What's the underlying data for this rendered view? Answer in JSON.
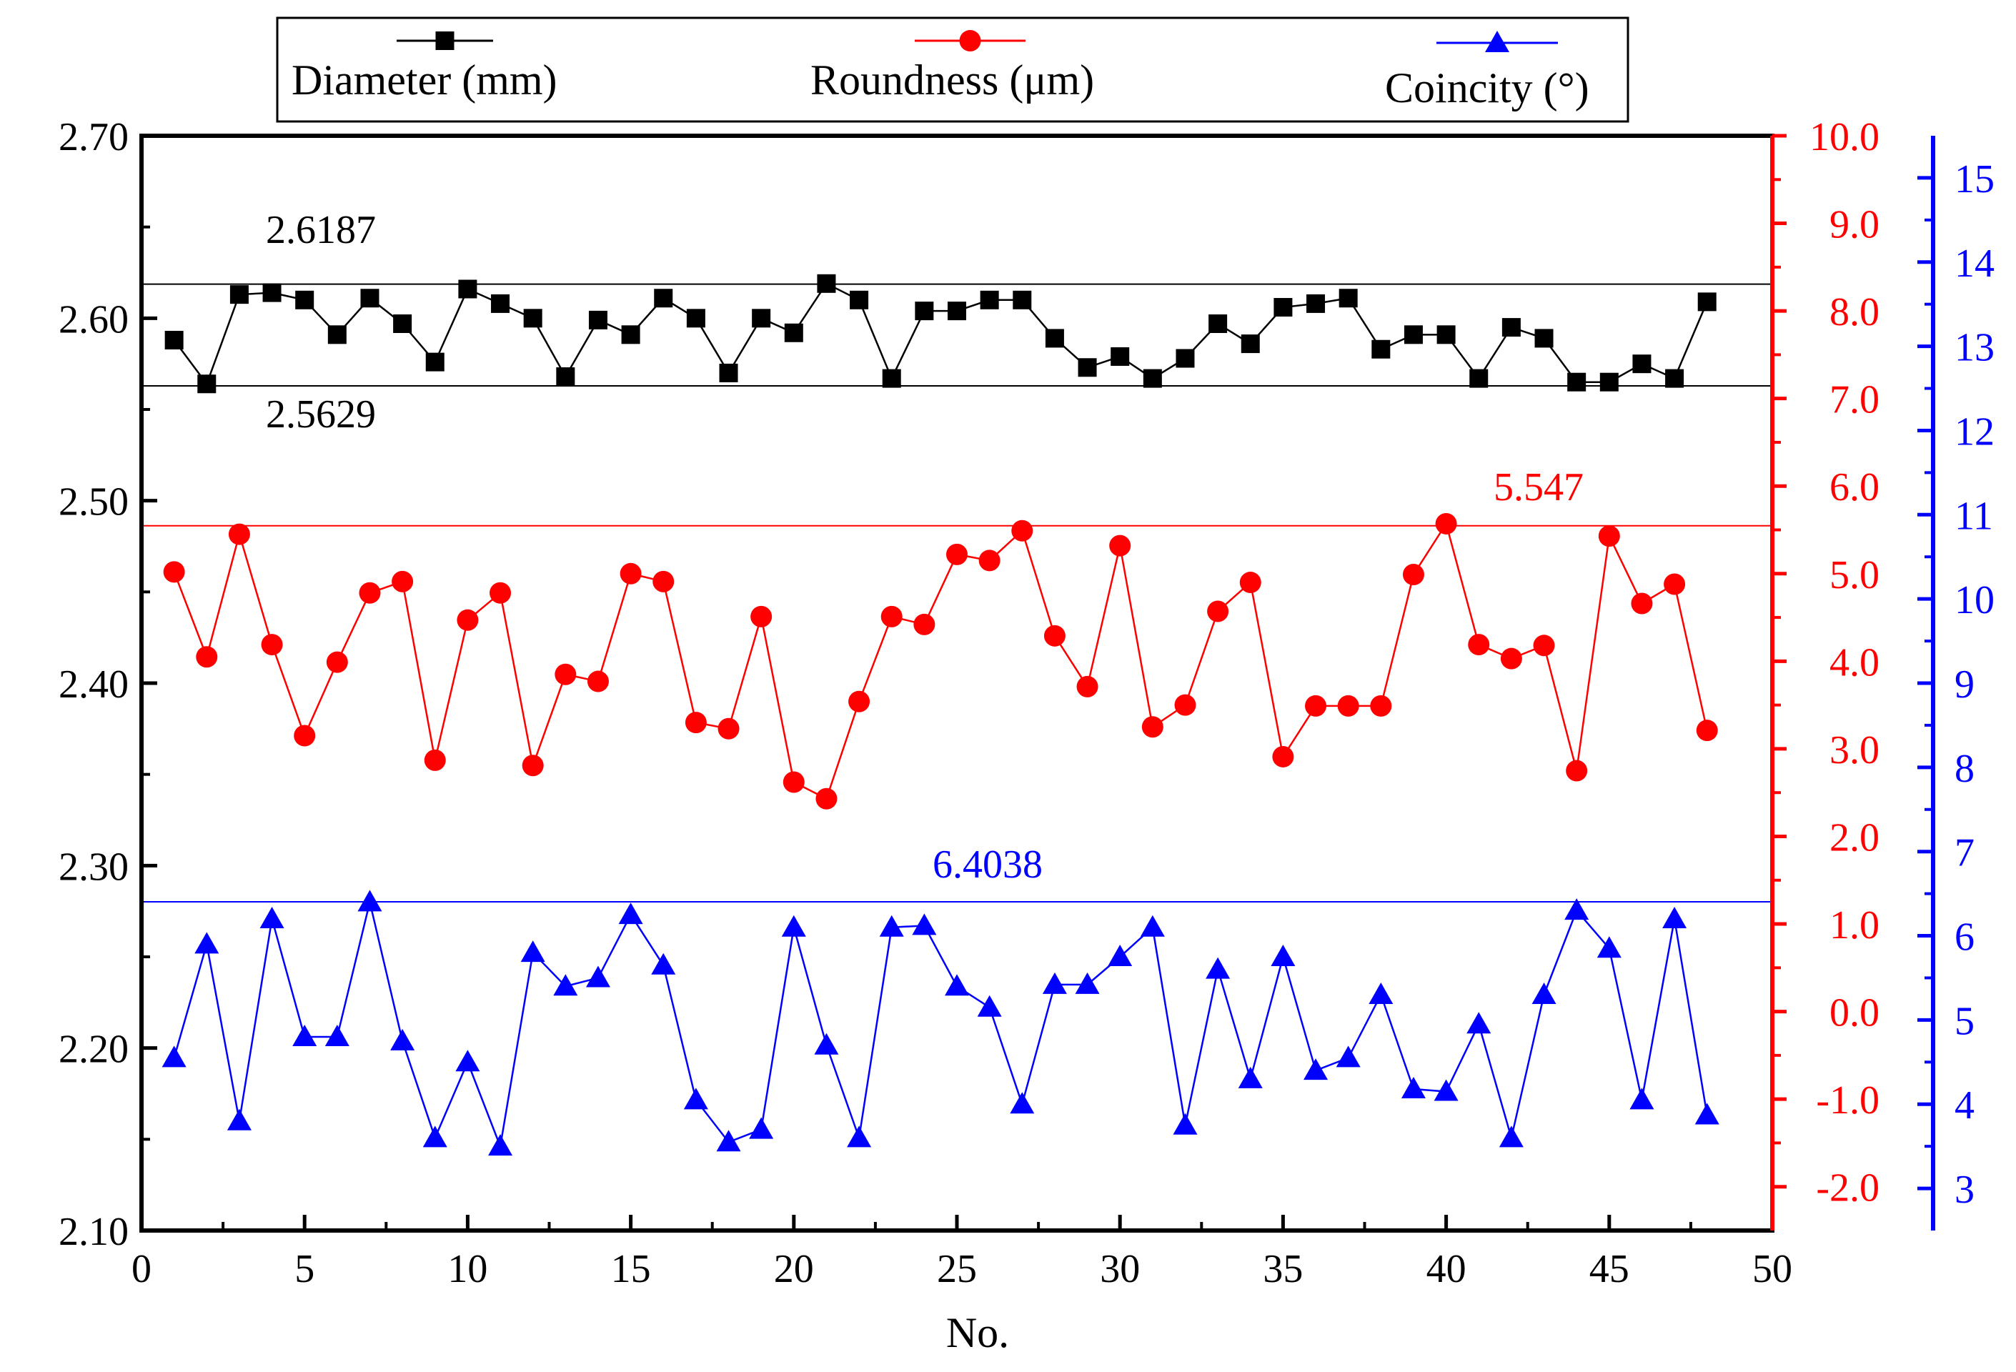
{
  "chart_data": {
    "type": "line",
    "title": "",
    "xlabel": "No.",
    "xlim": [
      0,
      50
    ],
    "x_ticks": [
      "0",
      "5",
      "10",
      "15",
      "20",
      "25",
      "30",
      "35",
      "40",
      "45",
      "50"
    ],
    "legend": {
      "placement": "top",
      "entries": [
        {
          "label": "Diameter (mm)",
          "color": "#000000",
          "marker": "square"
        },
        {
          "label": "Roundness (μm)",
          "color": "#ff0000",
          "marker": "circle"
        },
        {
          "label": "Coincity (°)",
          "color": "#0000ff",
          "marker": "triangle"
        }
      ]
    },
    "axes": {
      "left": {
        "color": "#000000",
        "ylim": [
          2.1,
          2.7
        ],
        "ticks": [
          "2.10",
          "2.20",
          "2.30",
          "2.40",
          "2.50",
          "2.60",
          "2.70"
        ]
      },
      "right1": {
        "color": "#ff0000",
        "ylim": [
          -2.5,
          10.0
        ],
        "ticks": [
          "-2.0",
          "-1.0",
          "0.0",
          "1.0",
          "2.0",
          "3.0",
          "4.0",
          "5.0",
          "6.0",
          "7.0",
          "8.0",
          "9.0",
          "10.0"
        ]
      },
      "right2": {
        "color": "#0000ff",
        "ylim": [
          2.5,
          15.5
        ],
        "ticks": [
          "3",
          "4",
          "5",
          "6",
          "7",
          "8",
          "9",
          "10",
          "11",
          "12",
          "13",
          "14",
          "15"
        ]
      }
    },
    "x": [
      1,
      2,
      3,
      4,
      5,
      6,
      7,
      8,
      9,
      10,
      11,
      12,
      13,
      14,
      15,
      16,
      17,
      18,
      19,
      20,
      21,
      22,
      23,
      24,
      25,
      26,
      27,
      28,
      29,
      30,
      31,
      32,
      33,
      34,
      35,
      36,
      37,
      38,
      39,
      40,
      41,
      42,
      43,
      44,
      45,
      46,
      47,
      48
    ],
    "series": [
      {
        "name": "Diameter (mm)",
        "axis": "left",
        "color": "#000000",
        "marker": "square",
        "values": [
          2.588,
          2.564,
          2.613,
          2.614,
          2.61,
          2.591,
          2.611,
          2.597,
          2.576,
          2.616,
          2.608,
          2.6,
          2.568,
          2.599,
          2.591,
          2.611,
          2.6,
          2.57,
          2.6,
          2.592,
          2.619,
          2.61,
          2.567,
          2.604,
          2.604,
          2.61,
          2.61,
          2.589,
          2.573,
          2.579,
          2.567,
          2.578,
          2.597,
          2.586,
          2.606,
          2.608,
          2.611,
          2.583,
          2.591,
          2.591,
          2.567,
          2.595,
          2.589,
          2.565,
          2.565,
          2.575,
          2.567,
          2.609
        ]
      },
      {
        "name": "Roundness (μm)",
        "axis": "right1",
        "color": "#ff0000",
        "marker": "circle",
        "values": [
          5.02,
          4.05,
          5.45,
          4.19,
          3.15,
          3.99,
          4.78,
          4.91,
          2.87,
          4.47,
          4.78,
          2.81,
          3.85,
          3.77,
          5.0,
          4.91,
          3.3,
          3.23,
          4.51,
          2.62,
          2.43,
          3.54,
          4.51,
          4.42,
          5.22,
          5.15,
          5.49,
          4.29,
          3.71,
          5.32,
          3.25,
          3.5,
          4.57,
          4.9,
          2.91,
          3.49,
          3.49,
          3.49,
          4.99,
          5.57,
          4.19,
          4.03,
          4.18,
          2.75,
          5.43,
          4.66,
          4.88,
          3.21
        ]
      },
      {
        "name": "Coincity (°)",
        "axis": "right2",
        "color": "#0000ff",
        "marker": "triangle",
        "values": [
          4.55,
          5.9,
          3.8,
          6.2,
          4.8,
          4.8,
          6.4,
          4.75,
          3.6,
          4.5,
          3.5,
          5.8,
          5.4,
          5.5,
          6.25,
          5.65,
          4.05,
          3.55,
          3.7,
          6.1,
          4.7,
          3.6,
          6.1,
          6.12,
          5.4,
          5.15,
          4.0,
          5.42,
          5.42,
          5.75,
          6.1,
          3.75,
          5.6,
          4.3,
          5.75,
          4.4,
          4.55,
          5.3,
          4.18,
          4.15,
          4.95,
          3.6,
          5.3,
          6.3,
          5.85,
          4.05,
          6.2,
          3.87
        ]
      }
    ],
    "reference_lines": [
      {
        "axis": "left",
        "value": 2.6187,
        "label": "2.6187",
        "color": "#000000"
      },
      {
        "axis": "left",
        "value": 2.5629,
        "label": "2.5629",
        "color": "#000000"
      },
      {
        "axis": "right1",
        "value": 5.547,
        "label": "5.547",
        "color": "#ff0000"
      },
      {
        "axis": "right2",
        "value": 6.4038,
        "label": "6.4038",
        "color": "#0000ff"
      }
    ]
  }
}
